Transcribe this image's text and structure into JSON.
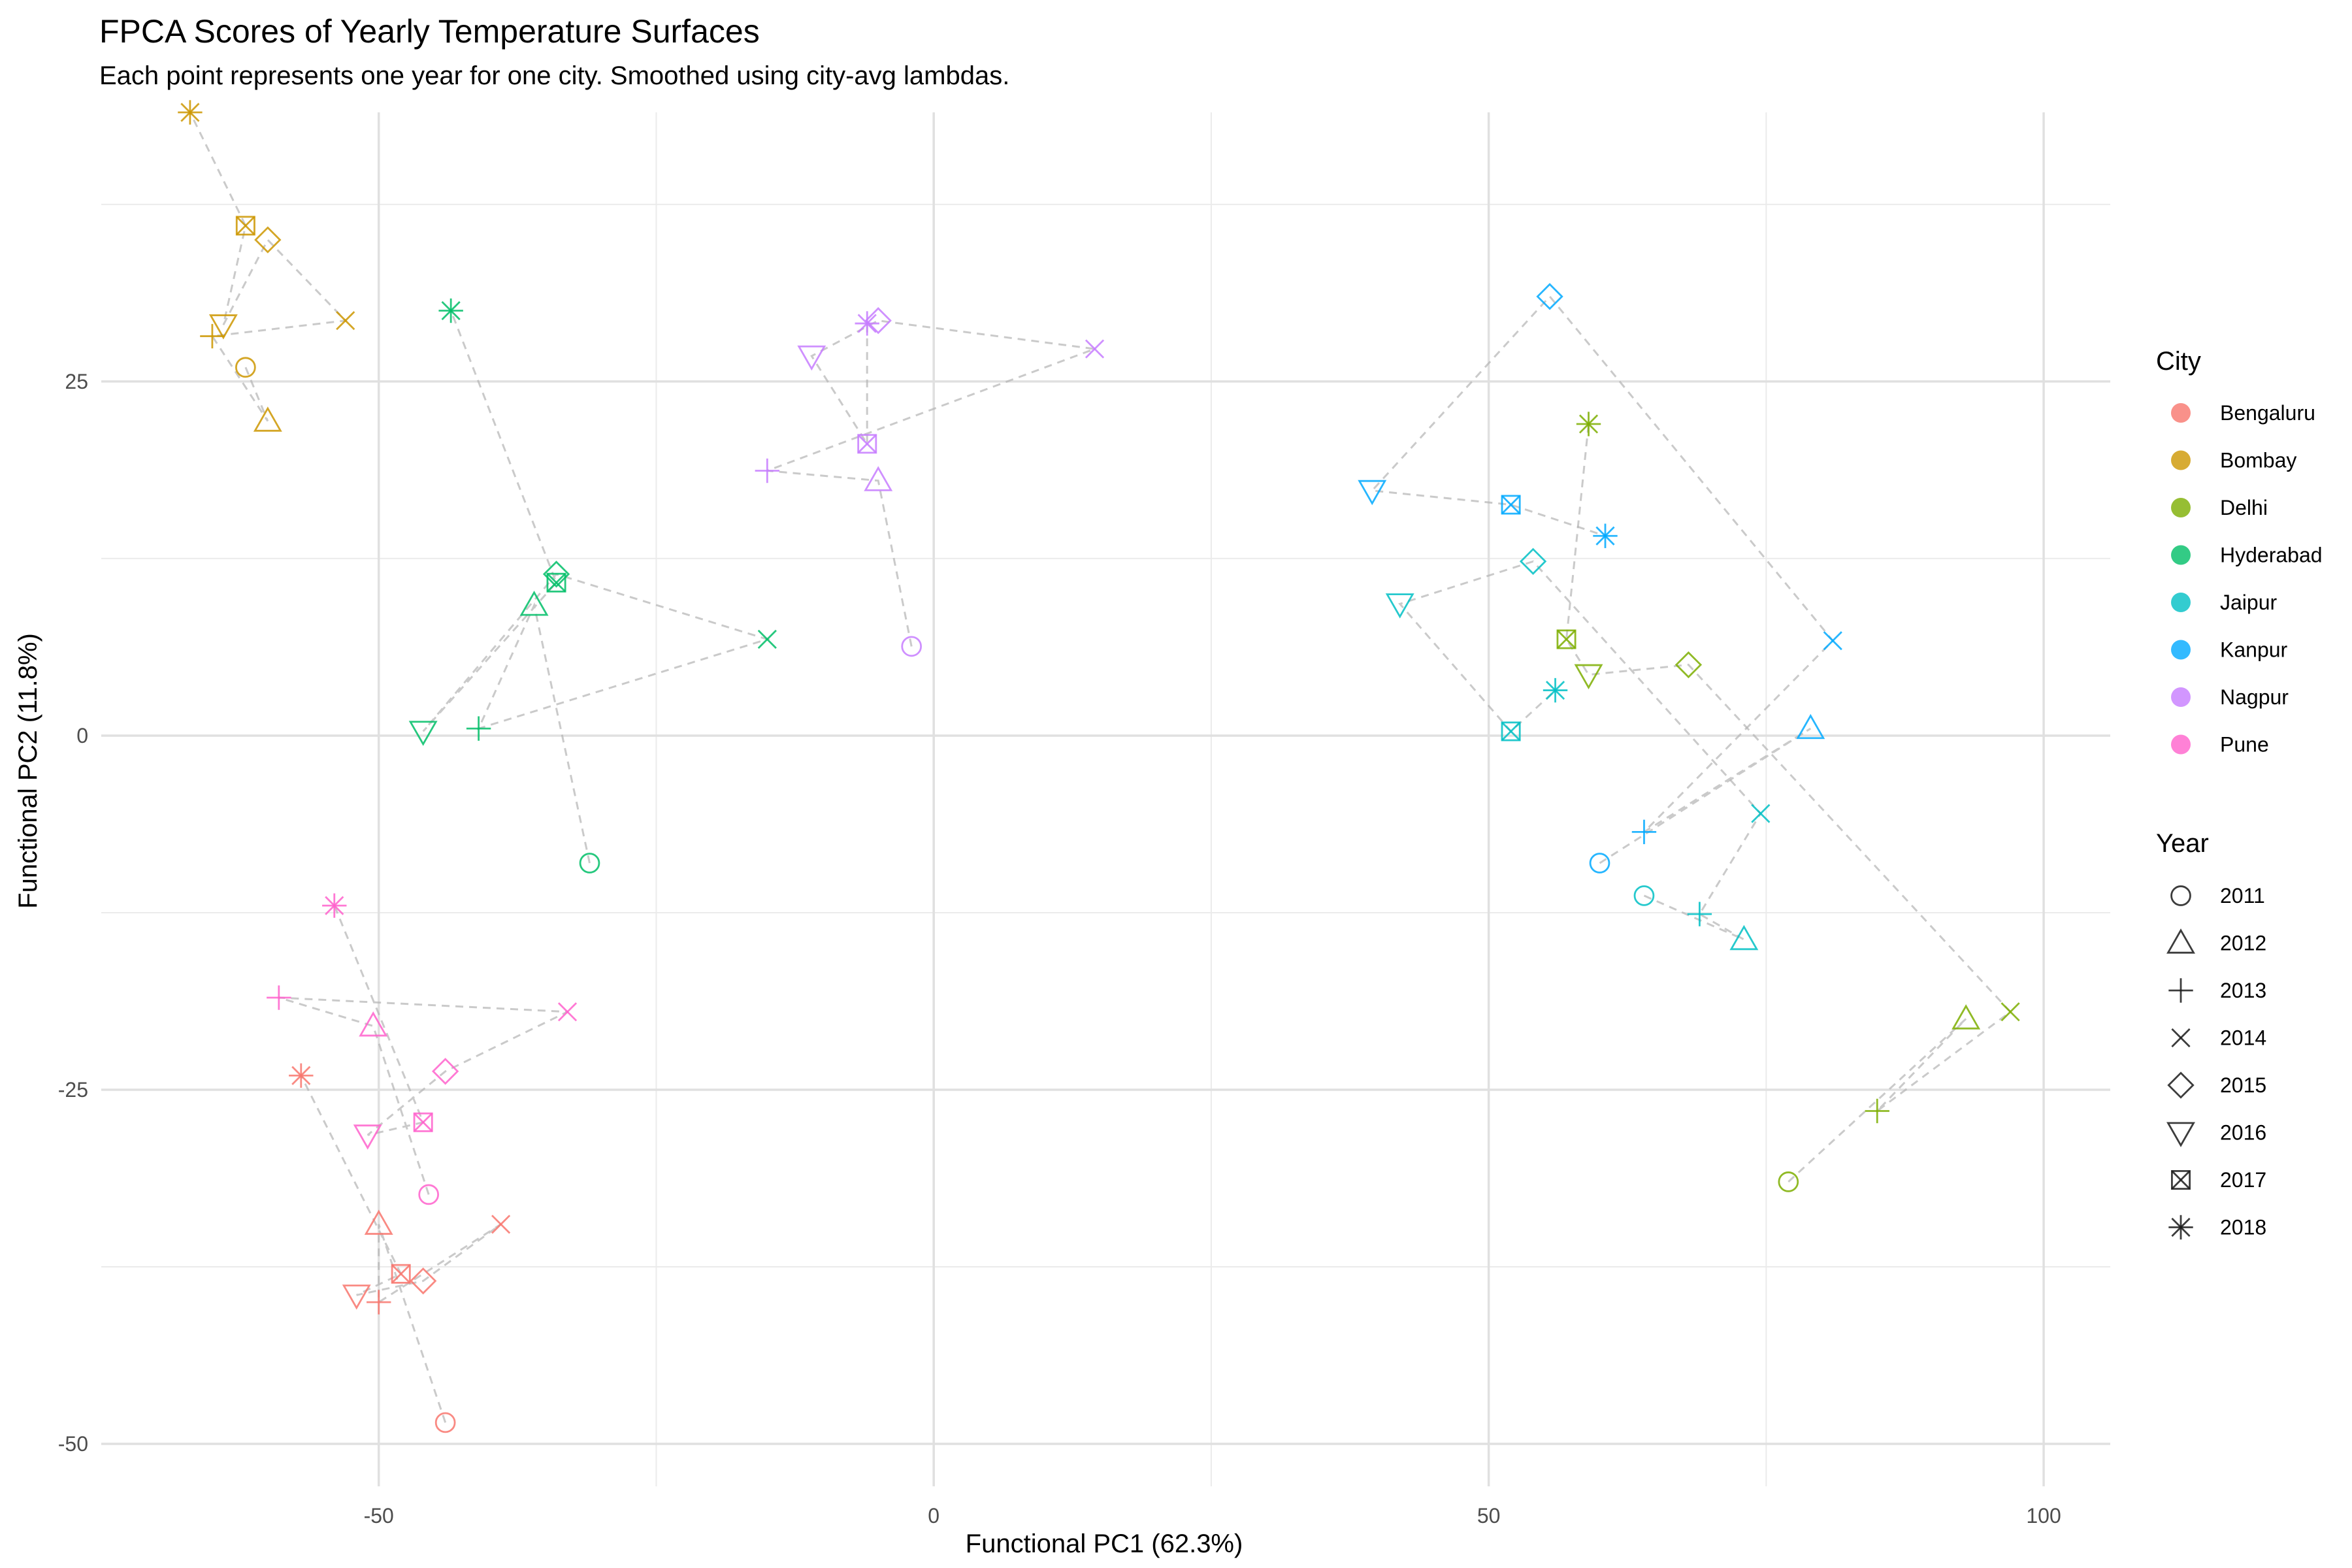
{
  "chart_data": {
    "type": "scatter",
    "title": "FPCA Scores of Yearly Temperature Surfaces",
    "subtitle": "Each point represents one year for one city. Smoothed using city-avg lambdas.",
    "xlabel": "Functional PC1 (62.3%)",
    "ylabel": "Functional PC2 (11.8%)",
    "xlim": [
      -75,
      106
    ],
    "ylim": [
      -53,
      44
    ],
    "x_ticks": [
      -50,
      0,
      50,
      100
    ],
    "x_tick_labels": [
      "-50",
      "0",
      "50",
      "100"
    ],
    "y_ticks": [
      -50,
      -25,
      0,
      25
    ],
    "y_tick_labels": [
      "-50",
      "-25",
      "0",
      "25"
    ],
    "grid": true,
    "legend_position": "right",
    "legend_city_title": "City",
    "legend_year_title": "Year",
    "years": [
      "2011",
      "2012",
      "2013",
      "2014",
      "2015",
      "2016",
      "2017",
      "2018"
    ],
    "year_shapes": [
      "circle",
      "triangle-up",
      "plus",
      "cross",
      "diamond",
      "triangle-down",
      "square-x",
      "asterisk"
    ],
    "series": [
      {
        "name": "Bengaluru",
        "color": "#F8766D",
        "x": [
          -44,
          -50,
          -50,
          -39,
          -46,
          -52,
          -48,
          -57
        ],
        "y": [
          -48.5,
          -34.5,
          -40,
          -34.5,
          -38.5,
          -39.5,
          -38,
          -24
        ]
      },
      {
        "name": "Bombay",
        "color": "#CD9600",
        "x": [
          -62,
          -60,
          -65,
          -53,
          -60,
          -64,
          -62,
          -67
        ],
        "y": [
          26,
          22.2,
          28.2,
          29.3,
          35,
          29,
          36,
          44
        ]
      },
      {
        "name": "Delhi",
        "color": "#7CAE00",
        "x": [
          77,
          93,
          85,
          97,
          68,
          59,
          57,
          59
        ],
        "y": [
          -31.5,
          -20,
          -26.5,
          -19.5,
          5,
          4.3,
          6.8,
          22
        ]
      },
      {
        "name": "Hyderabad",
        "color": "#00BE67",
        "x": [
          -31,
          -36,
          -41,
          -15,
          -34,
          -46,
          -34,
          -43.5
        ],
        "y": [
          -9,
          9.2,
          0.5,
          6.8,
          11.4,
          0.3,
          10.8,
          30
        ]
      },
      {
        "name": "Jaipur",
        "color": "#00BFC4",
        "x": [
          64,
          73,
          69,
          74.5,
          54,
          42,
          52,
          56
        ],
        "y": [
          -11.3,
          -14.4,
          -12.6,
          -5.5,
          12.3,
          9.3,
          0.3,
          3.2
        ]
      },
      {
        "name": "Kanpur",
        "color": "#00A9FF",
        "x": [
          60,
          79,
          64,
          81,
          55.5,
          39.5,
          52,
          60.5
        ],
        "y": [
          -9,
          0.5,
          -6.8,
          6.7,
          31,
          17.3,
          16.3,
          14.1
        ]
      },
      {
        "name": "Nagpur",
        "color": "#C77CFF",
        "x": [
          -2,
          -5,
          -15,
          14.5,
          -5,
          -11,
          -6,
          -6
        ],
        "y": [
          6.3,
          18,
          18.7,
          27.3,
          29.3,
          26.8,
          20.6,
          29.1
        ]
      },
      {
        "name": "Pune",
        "color": "#FF61CC",
        "x": [
          -45.5,
          -50.5,
          -59,
          -33,
          -44,
          -51,
          -46,
          -54
        ],
        "y": [
          -32.4,
          -20.5,
          -18.5,
          -19.5,
          -23.7,
          -28.2,
          -27.3,
          -12
        ]
      }
    ]
  }
}
